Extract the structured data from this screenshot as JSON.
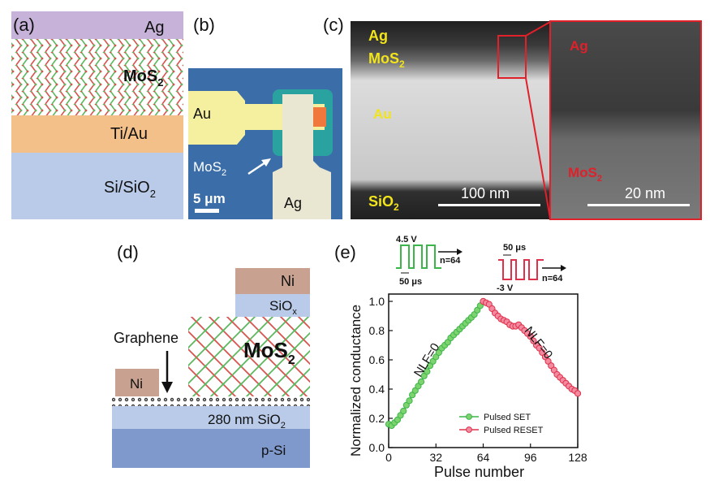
{
  "panel_a": {
    "label": "(a)",
    "layers": {
      "top": "Ag",
      "middle": "MoS",
      "mid_sub": "2",
      "contact": "Ti/Au",
      "substrate_a": "Si/SiO",
      "substrate_sub": "2"
    }
  },
  "panel_b": {
    "label": "(b)",
    "au": "Au",
    "mos2": "MoS",
    "mos2_sub": "2",
    "ag": "Ag",
    "scale": "5 μm"
  },
  "panel_c": {
    "label": "(c)",
    "ag": "Ag",
    "mos2": "MoS",
    "mos2_sub": "2",
    "au": "Au",
    "sio2": "SiO",
    "sio2_sub": "2",
    "scale1": "100 nm",
    "zoom_ag": "Ag",
    "zoom_mos2": "MoS",
    "zoom_mos2_sub": "2",
    "scale2": "20 nm"
  },
  "panel_d": {
    "label": "(d)",
    "ni_top": "Ni",
    "siox": "SiO",
    "siox_sub": "x",
    "graphene": "Graphene",
    "mos2": "MoS",
    "mos2_sub": "2",
    "ni_left": "Ni",
    "sio2": "280 nm SiO",
    "sio2_sub": "2",
    "psi": "p-Si"
  },
  "panel_e": {
    "label": "(e)",
    "set_pulse": {
      "voltage": "4.5 V",
      "width": "50 μs",
      "count": "n=64"
    },
    "reset_pulse": {
      "voltage": "-3 V",
      "width": "50 μs",
      "count": "n=64"
    }
  },
  "chart_data": {
    "type": "scatter",
    "title": "",
    "xlabel": "Pulse number",
    "ylabel": "Normalized conductance",
    "xlim": [
      0,
      128
    ],
    "ylim": [
      0.0,
      1.05
    ],
    "xticks": [
      "0",
      "32",
      "64",
      "96",
      "128"
    ],
    "xtick_values": [
      0,
      32,
      64,
      96,
      128
    ],
    "yticks": [
      "0.0",
      "0.2",
      "0.4",
      "0.6",
      "0.8",
      "1.0"
    ],
    "ytick_values": [
      0.0,
      0.2,
      0.4,
      0.6,
      0.8,
      1.0
    ],
    "legend_position": "bottom-right",
    "annotations": [
      "NLF=0",
      "NLF=0"
    ],
    "series": [
      {
        "name": "Pulsed SET",
        "color": "#3cb54a",
        "x": [
          0,
          2,
          4,
          6,
          8,
          10,
          12,
          14,
          16,
          18,
          20,
          22,
          24,
          26,
          28,
          30,
          32,
          34,
          36,
          38,
          40,
          42,
          44,
          46,
          48,
          50,
          52,
          54,
          56,
          58,
          60,
          62,
          64
        ],
        "y": [
          0.16,
          0.15,
          0.17,
          0.19,
          0.22,
          0.25,
          0.29,
          0.32,
          0.36,
          0.39,
          0.42,
          0.45,
          0.49,
          0.52,
          0.56,
          0.59,
          0.62,
          0.65,
          0.68,
          0.7,
          0.72,
          0.75,
          0.77,
          0.79,
          0.81,
          0.83,
          0.85,
          0.87,
          0.89,
          0.91,
          0.94,
          0.97,
          1.0
        ]
      },
      {
        "name": "Pulsed RESET",
        "color": "#e0304a",
        "x": [
          64,
          66,
          68,
          70,
          72,
          74,
          76,
          78,
          80,
          82,
          84,
          86,
          88,
          90,
          92,
          94,
          96,
          98,
          100,
          102,
          104,
          106,
          108,
          110,
          112,
          114,
          116,
          118,
          120,
          122,
          124,
          126,
          128
        ],
        "y": [
          1.0,
          0.99,
          0.98,
          0.95,
          0.92,
          0.9,
          0.88,
          0.87,
          0.86,
          0.84,
          0.83,
          0.83,
          0.84,
          0.82,
          0.8,
          0.78,
          0.76,
          0.73,
          0.7,
          0.68,
          0.65,
          0.62,
          0.59,
          0.56,
          0.53,
          0.5,
          0.48,
          0.46,
          0.44,
          0.42,
          0.4,
          0.39,
          0.37
        ]
      }
    ]
  }
}
